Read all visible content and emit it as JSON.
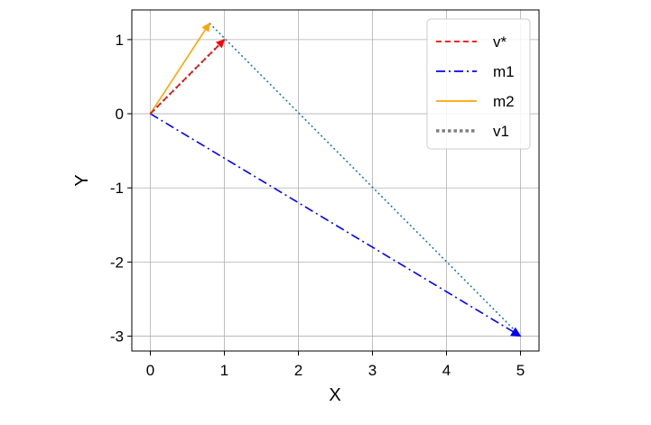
{
  "chart_data": {
    "type": "line",
    "title": "",
    "xlabel": "X",
    "ylabel": "Y",
    "xlim": [
      -0.25,
      5.25
    ],
    "ylim": [
      -3.2,
      1.4
    ],
    "xticks": [
      0,
      1,
      2,
      3,
      4,
      5
    ],
    "xtick_labels": [
      "0",
      "1",
      "2",
      "3",
      "4",
      "5"
    ],
    "yticks": [
      1,
      0,
      -1,
      -2,
      -3
    ],
    "ytick_labels": [
      "1",
      "0",
      "-1",
      "-2",
      "-3"
    ],
    "grid": true,
    "legend_position": "top-right",
    "series": [
      {
        "name": "v*",
        "style": "dashed",
        "color": "#ff0000",
        "points": [
          [
            0,
            0
          ],
          [
            1,
            1
          ]
        ],
        "arrow": true
      },
      {
        "name": "m1",
        "style": "dashdot",
        "color": "#0000ff",
        "points": [
          [
            0,
            0
          ],
          [
            5,
            -3
          ]
        ],
        "arrow": true
      },
      {
        "name": "m2",
        "style": "solid",
        "color": "#ffa500",
        "points": [
          [
            0,
            0
          ],
          [
            0.8,
            1.22
          ]
        ],
        "arrow": true
      },
      {
        "name": "v1",
        "style": "dotted",
        "color": "#808080",
        "points": [
          [
            0,
            0
          ],
          [
            1,
            1
          ]
        ],
        "arrow": false
      }
    ],
    "annotations": [
      {
        "style": "dotted",
        "color": "#1f77b4",
        "points": [
          [
            0.8,
            1.22
          ],
          [
            5,
            -3
          ]
        ],
        "arrow": false
      }
    ]
  }
}
